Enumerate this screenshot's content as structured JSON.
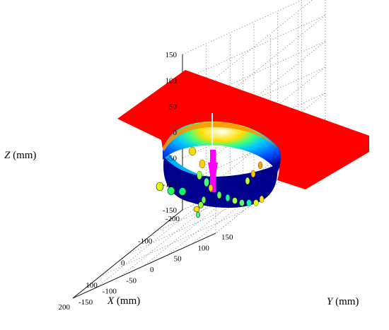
{
  "chart_data": {
    "type": "3d-surface",
    "title": "",
    "xlabel": {
      "var": "X",
      "unit": " (mm)"
    },
    "ylabel": {
      "var": "Y",
      "unit": " (mm)"
    },
    "zlabel": {
      "var": "Z",
      "unit": " (mm)"
    },
    "xlim": [
      -200,
      200
    ],
    "ylim": [
      -150,
      150
    ],
    "zlim": [
      -150,
      150
    ],
    "x_ticks": [
      "-200",
      "-100",
      "0",
      "100",
      "200"
    ],
    "y_ticks": [
      "-150",
      "-100",
      "-50",
      "0",
      "50",
      "100",
      "150"
    ],
    "z_ticks": [
      "-150",
      "-100",
      "-50",
      "0",
      "50",
      "100",
      "150"
    ],
    "grid": true,
    "grid_style": "dotted",
    "surface": {
      "description_colors": {
        "plane": "#ff0000",
        "bowl_deep": "#00008f",
        "bowl_rim": "#00c8ff",
        "bowl_edge": "#ffe000",
        "probe": "#ff00ff",
        "shaft": "#ffffff"
      }
    }
  }
}
